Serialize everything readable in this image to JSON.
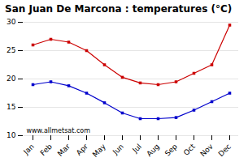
{
  "chart_data": {
    "type": "line",
    "title": "San Juan De Marcona : temperatures (°C)",
    "categories": [
      "Jan",
      "Feb",
      "Mar",
      "Apr",
      "May",
      "Jun",
      "Jul",
      "Aug",
      "Sep",
      "Oct",
      "Nov",
      "Dec"
    ],
    "series": [
      {
        "color": "#cc0000",
        "marker": "square",
        "values": [
          26.0,
          27.0,
          26.5,
          25.0,
          22.5,
          20.3,
          19.3,
          19.0,
          19.5,
          21.0,
          22.5,
          29.5
        ]
      },
      {
        "color": "#0000cc",
        "marker": "square",
        "values": [
          19.0,
          19.5,
          18.8,
          17.5,
          15.8,
          14.0,
          13.0,
          13.0,
          13.2,
          14.5,
          16.0,
          17.5
        ]
      }
    ],
    "ylim": [
      10,
      30
    ],
    "yticks": [
      10,
      15,
      20,
      25,
      30
    ],
    "grid": true,
    "annotations": [
      "www.allmetsat.com"
    ]
  }
}
